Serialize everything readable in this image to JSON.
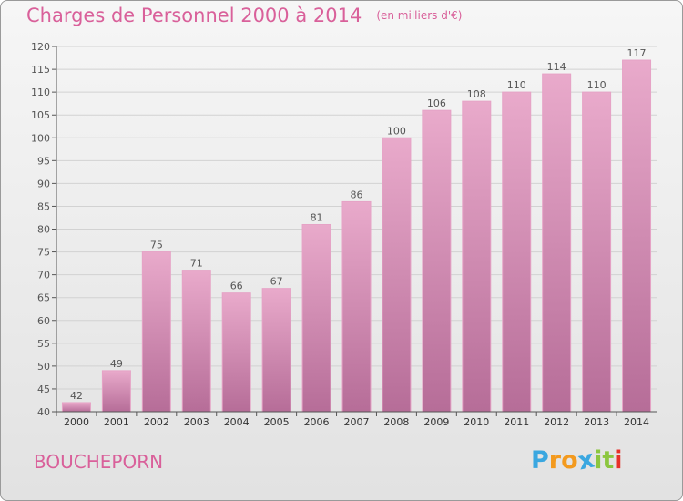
{
  "title": "Charges de Personnel 2000 à 2014",
  "subtitle": "(en milliers d'€)",
  "commune": "BOUCHEPORN",
  "logo": {
    "letters": [
      "P",
      "r",
      "o",
      "x",
      "i",
      "t",
      "i"
    ],
    "colors": [
      "#3aa7e0",
      "#f39a1e",
      "#f39a1e",
      "#3aa7e0",
      "#8cc63f",
      "#8cc63f",
      "#e8302a"
    ]
  },
  "colors": {
    "bar_top": "#e9aacb",
    "bar_bottom": "#b66d98",
    "bar_edge": "#e6a3c6",
    "label": "#555555"
  },
  "chart_data": {
    "type": "bar",
    "categories": [
      "2000",
      "2001",
      "2002",
      "2003",
      "2004",
      "2005",
      "2006",
      "2007",
      "2008",
      "2009",
      "2010",
      "2011",
      "2012",
      "2013",
      "2014"
    ],
    "values": [
      42,
      49,
      75,
      71,
      66,
      67,
      81,
      86,
      100,
      106,
      108,
      110,
      114,
      110,
      117
    ],
    "ylim": [
      40,
      120
    ],
    "yticks": [
      40,
      45,
      50,
      55,
      60,
      65,
      70,
      75,
      80,
      85,
      90,
      95,
      100,
      105,
      110,
      115,
      120
    ],
    "grid": true
  }
}
